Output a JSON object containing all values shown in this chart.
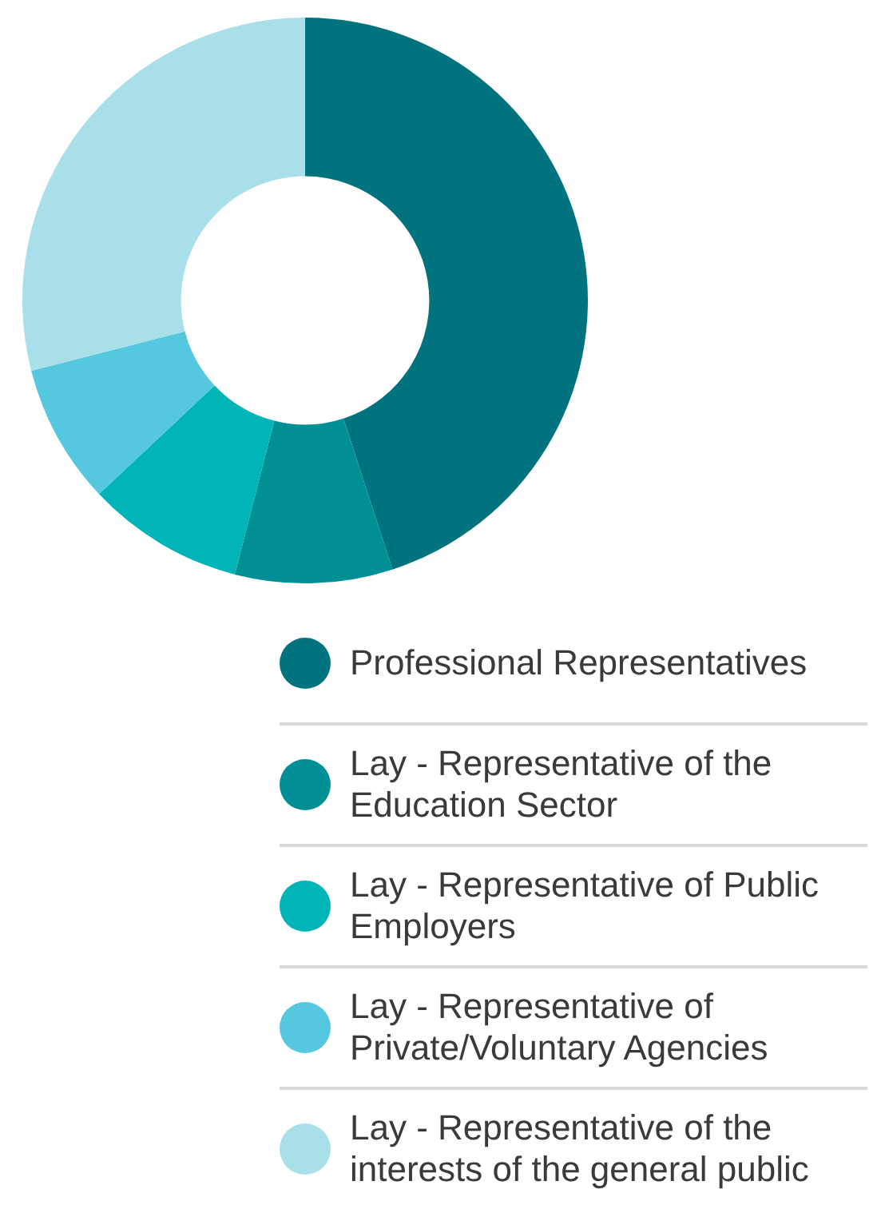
{
  "chart_data": {
    "type": "donut",
    "categories": [
      "Professional Representatives",
      "Lay - Representative of the Education Sector",
      "Lay - Representative of Public Employers",
      "Lay - Representative of Private/Voluntary Agencies",
      "Lay - Representative of the interests of the general public"
    ],
    "values": [
      45,
      9,
      9,
      8,
      29
    ],
    "colors": [
      "#00737f",
      "#008f94",
      "#00b4b8",
      "#55c8e0",
      "#a8dfe8"
    ],
    "legend": "bottom"
  }
}
